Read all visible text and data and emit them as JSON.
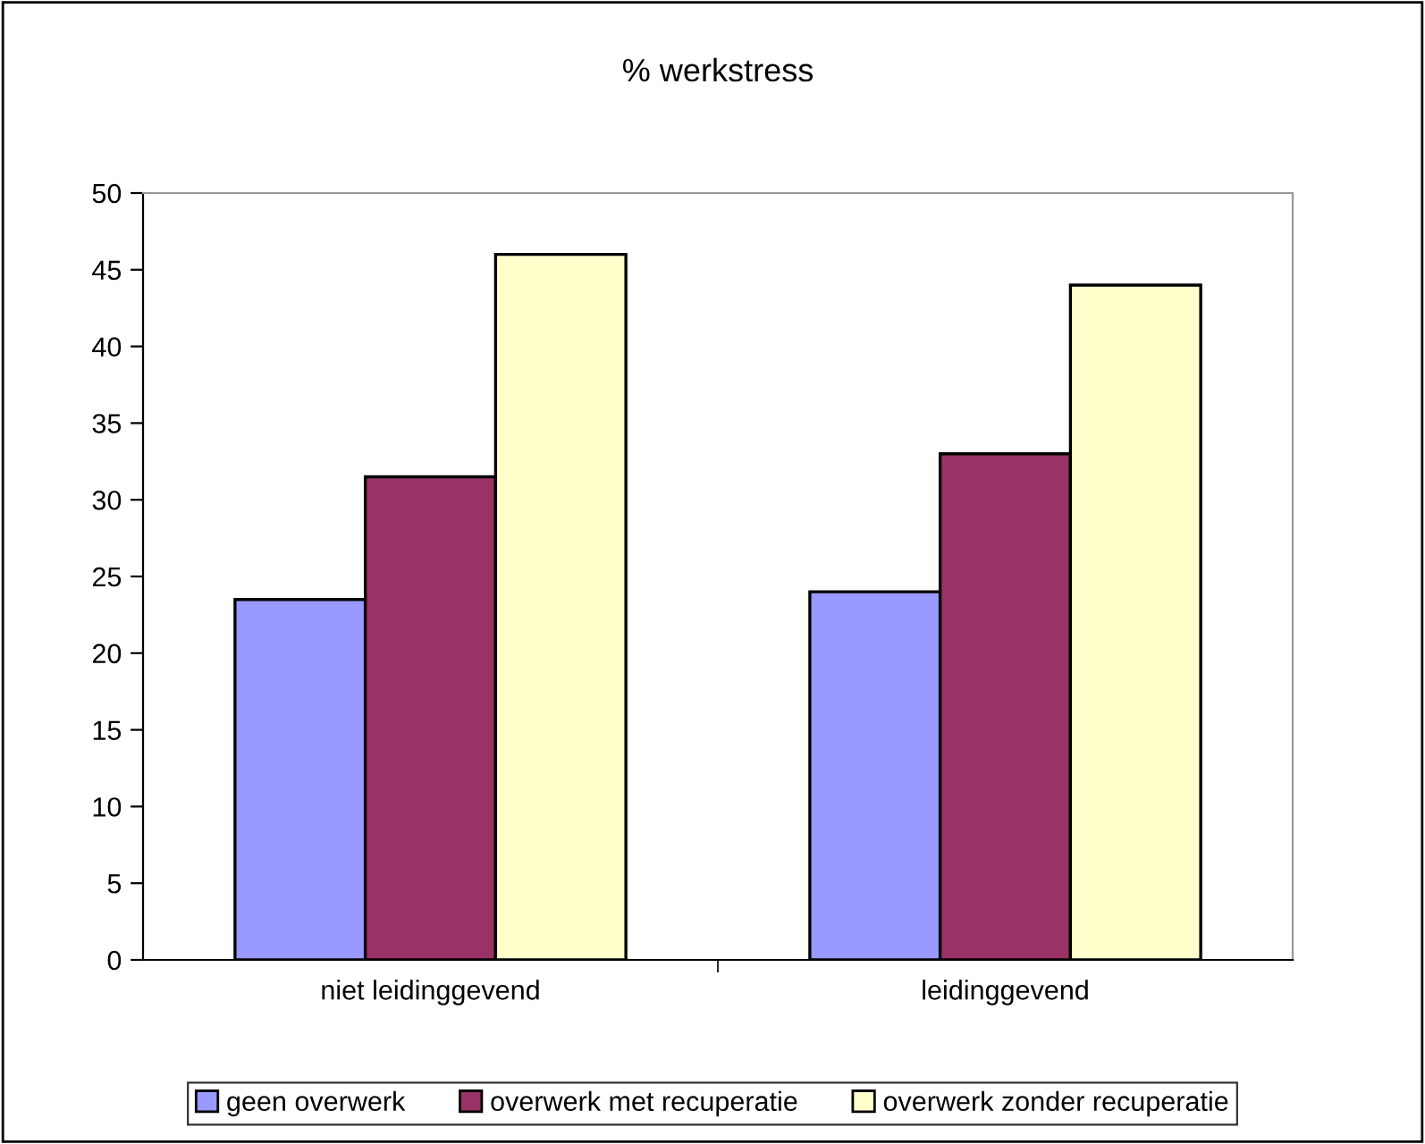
{
  "chart_data": {
    "type": "bar",
    "title": "% werkstress",
    "categories": [
      "niet leidinggevend",
      "leidinggevend"
    ],
    "series": [
      {
        "name": "geen overwerk",
        "color": "#9999ff",
        "values": [
          23.5,
          24
        ]
      },
      {
        "name": "overwerk met recuperatie",
        "color": "#993366",
        "values": [
          31.5,
          33
        ]
      },
      {
        "name": "overwerk zonder recuperatie",
        "color": "#ffffcc",
        "values": [
          46,
          44
        ]
      }
    ],
    "ylim": [
      0,
      50
    ],
    "yticks": [
      0,
      5,
      10,
      15,
      20,
      25,
      30,
      35,
      40,
      45,
      50
    ],
    "grid": false,
    "legend": "bottom"
  }
}
